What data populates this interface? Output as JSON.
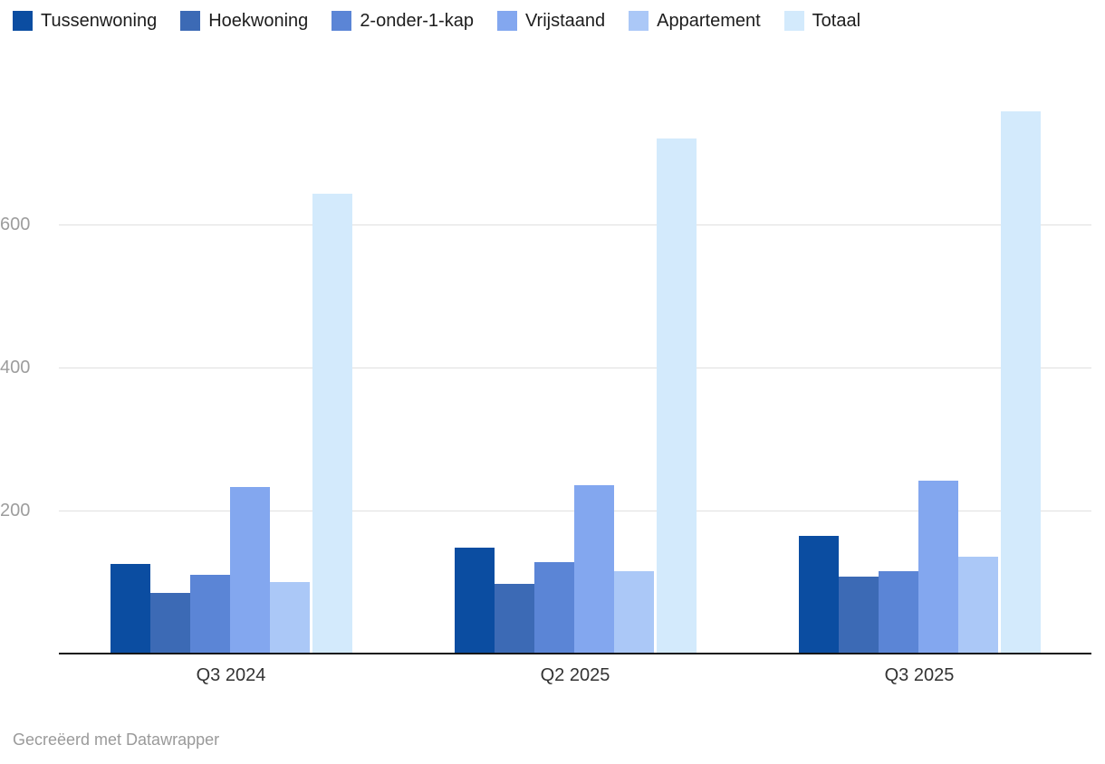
{
  "chart_data": {
    "type": "bar",
    "title": "",
    "categories": [
      "Q3 2024",
      "Q2 2025",
      "Q3 2025"
    ],
    "series": [
      {
        "name": "Tussenwoning",
        "color": "#0b4da1",
        "values": [
          125,
          148,
          165
        ]
      },
      {
        "name": "Hoekwoning",
        "color": "#3c6ab5",
        "values": [
          85,
          97,
          107
        ]
      },
      {
        "name": "2-onder-1-kap",
        "color": "#5b85d6",
        "values": [
          110,
          128,
          115
        ]
      },
      {
        "name": "Vrijstaand",
        "color": "#83a7ef",
        "values": [
          233,
          236,
          242
        ]
      },
      {
        "name": "Appartement",
        "color": "#abc8f7",
        "values": [
          100,
          115,
          135
        ]
      },
      {
        "name": "Totaal",
        "color": "#d3eafc",
        "values": [
          643,
          720,
          758
        ]
      }
    ],
    "ylim": [
      0,
      800
    ],
    "yticks": [
      200,
      400,
      600
    ],
    "grid": true,
    "legend_position": "top",
    "xlabel": "",
    "ylabel": ""
  },
  "footer": {
    "credit": "Gecreëerd met Datawrapper"
  }
}
